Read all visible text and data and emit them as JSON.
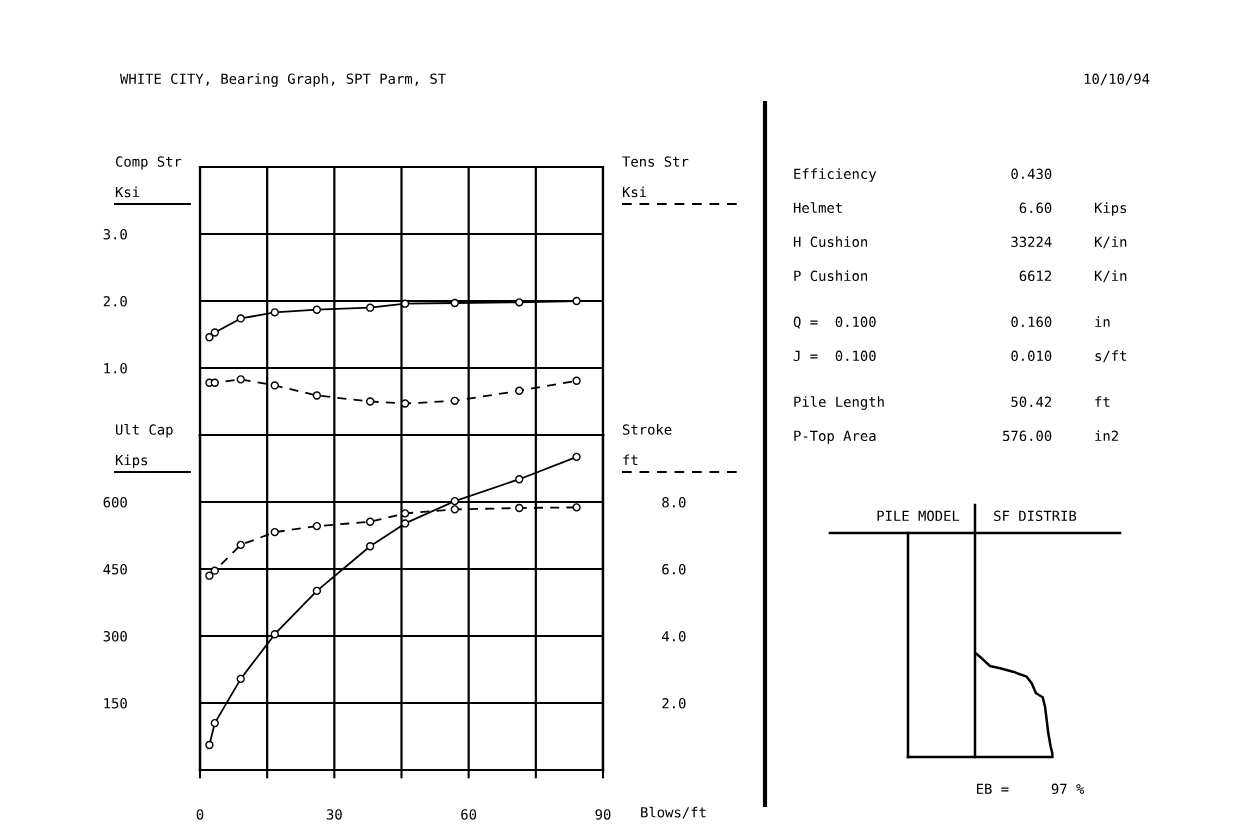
{
  "chart_data": [
    {
      "type": "line",
      "title": "WHITE CITY, Bearing Graph, SPT Parm, ST",
      "ylabel": "Comp Str\nKsi",
      "y2label": "Tens Str\nKsi",
      "x": [
        2.1,
        3.3,
        9.1,
        16.7,
        26.1,
        38.0,
        45.8,
        56.9,
        71.3,
        84.1
      ],
      "series": [
        {
          "color": "#000000",
          "line_style": "solid",
          "values": [
            1.46,
            1.53,
            1.74,
            1.83,
            1.87,
            1.9,
            1.96,
            1.97,
            1.98,
            2.0
          ]
        },
        {
          "color": "#000000",
          "line_style": "dashed",
          "values": [
            0.78,
            0.78,
            0.83,
            0.74,
            0.59,
            0.5,
            0.47,
            0.51,
            0.66,
            0.81
          ]
        }
      ],
      "xlim": [
        0,
        90
      ],
      "xticks": [
        0,
        {
          "value": 15,
          "label": null
        },
        30,
        {
          "value": 45,
          "label": null
        },
        60,
        {
          "value": 75,
          "label": null
        },
        90
      ],
      "ylim": [
        0,
        4
      ],
      "yticks": [
        {
          "value": 1,
          "label": "1.0"
        },
        {
          "value": 2,
          "label": "2.0"
        },
        {
          "value": 3,
          "label": "3.0"
        }
      ],
      "tick_labels": "y",
      "grid": true,
      "marker": "circle"
    },
    {
      "type": "line",
      "ylabel": "Ult Cap\nKips",
      "y2label": "Stroke\nft",
      "xlabel": "Blows/ft",
      "x": [
        2.1,
        3.3,
        9.1,
        16.7,
        26.1,
        38.0,
        45.8,
        56.9,
        71.3,
        84.1
      ],
      "series": [
        {
          "color": "#000000",
          "line_style": "solid",
          "values": [
            56,
            105,
            204,
            304,
            401,
            501,
            552,
            602,
            651,
            701
          ]
        },
        {
          "color": "#000000",
          "line_style": "dashed",
          "axis": "y2",
          "values": [
            5.8,
            5.95,
            6.72,
            7.1,
            7.28,
            7.41,
            7.66,
            7.78,
            7.82,
            7.84
          ]
        }
      ],
      "xlim": [
        0,
        90
      ],
      "xticks": [
        0,
        {
          "value": 15,
          "label": null
        },
        30,
        {
          "value": 45,
          "label": null
        },
        60,
        {
          "value": 75,
          "label": null
        },
        90
      ],
      "ylim": [
        0,
        750
      ],
      "yticks": [
        150,
        300,
        450,
        600
      ],
      "y2lim": [
        0,
        10
      ],
      "y2ticks": [
        {
          "value": 2,
          "label": "2.0"
        },
        {
          "value": 4,
          "label": "4.0"
        },
        {
          "value": 6,
          "label": "6.0"
        },
        {
          "value": 8,
          "label": "8.0"
        }
      ],
      "grid": true,
      "marker": "circle"
    },
    {
      "type": "other",
      "annotations": [
        "10/10/94",
        "Efficiency                0.430",
        "Helmet                     6.60     Kips",
        "H Cushion                 33224     K/in",
        "P Cushion                  6612     K/in",
        "Q =  0.100                0.160     in",
        "J =  0.100                0.010     s/ft",
        "Pile Length               50.42     ft",
        "P-Top Area               576.00     in2"
      ]
    },
    {
      "type": "other",
      "title": "SF DISTRIB",
      "annotations": [
        "PILE MODEL",
        "EB =     97 %"
      ]
    }
  ]
}
